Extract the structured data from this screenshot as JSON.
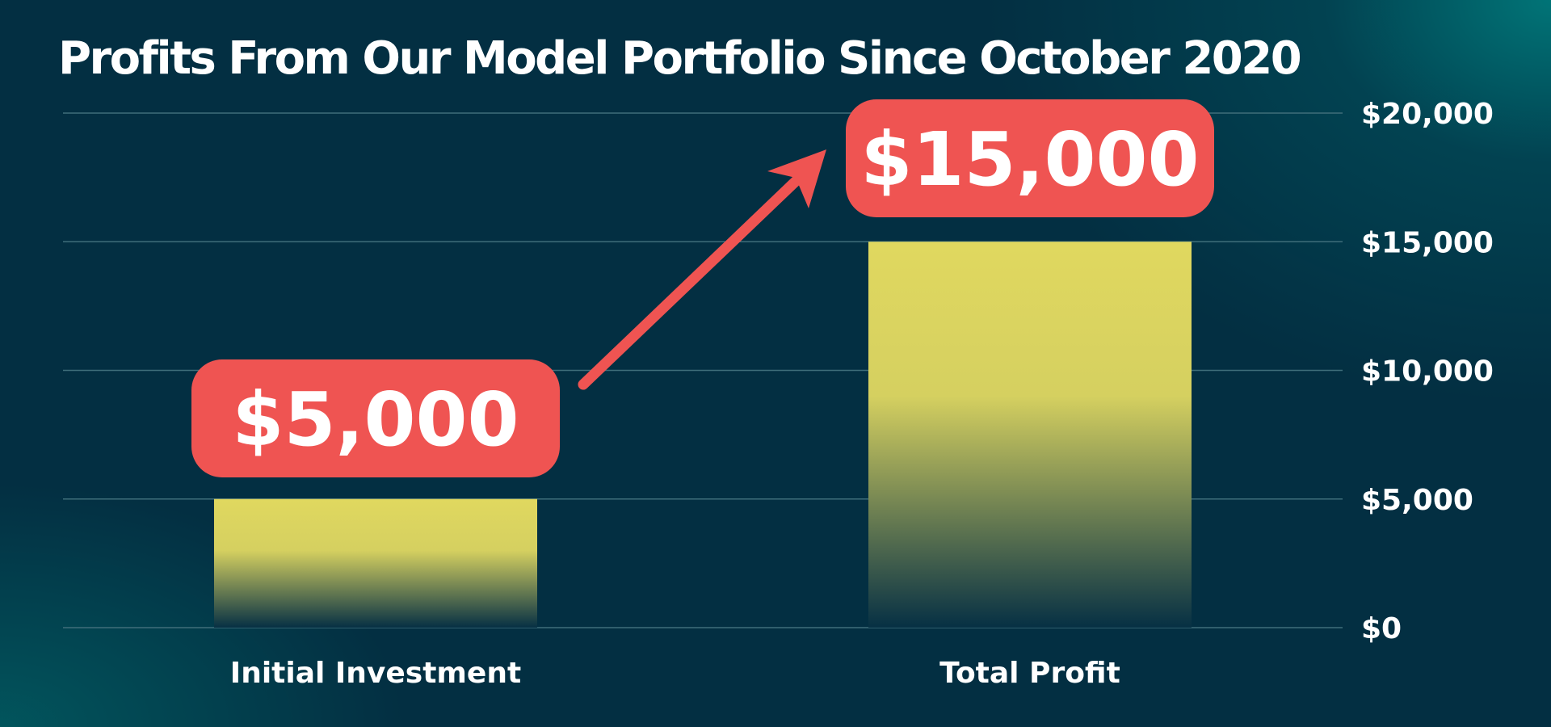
{
  "chart_data": {
    "type": "bar",
    "title": "Profits From Our Model Portfolio Since October 2020",
    "categories": [
      "Initial Investment",
      "Total Profit"
    ],
    "values": [
      5000,
      15000
    ],
    "data_labels": [
      "$5,000",
      "$15,000"
    ],
    "y_ticks": [
      {
        "value": 0,
        "label": "$0"
      },
      {
        "value": 5000,
        "label": "$5,000"
      },
      {
        "value": 10000,
        "label": "$10,000"
      },
      {
        "value": 15000,
        "label": "$15,000"
      },
      {
        "value": 20000,
        "label": "$20,000"
      }
    ],
    "ylim": [
      0,
      20000
    ],
    "y_axis_position": "right",
    "grid": true,
    "legend": "none",
    "annotation": "arrow from initial investment to total profit",
    "colors": {
      "background": "#032f42",
      "bar_top": "#e0d85f",
      "bar_bottom": "#063044",
      "callout": "#ef5452",
      "gridline": "#3f6e7a",
      "text": "#ffffff"
    }
  }
}
